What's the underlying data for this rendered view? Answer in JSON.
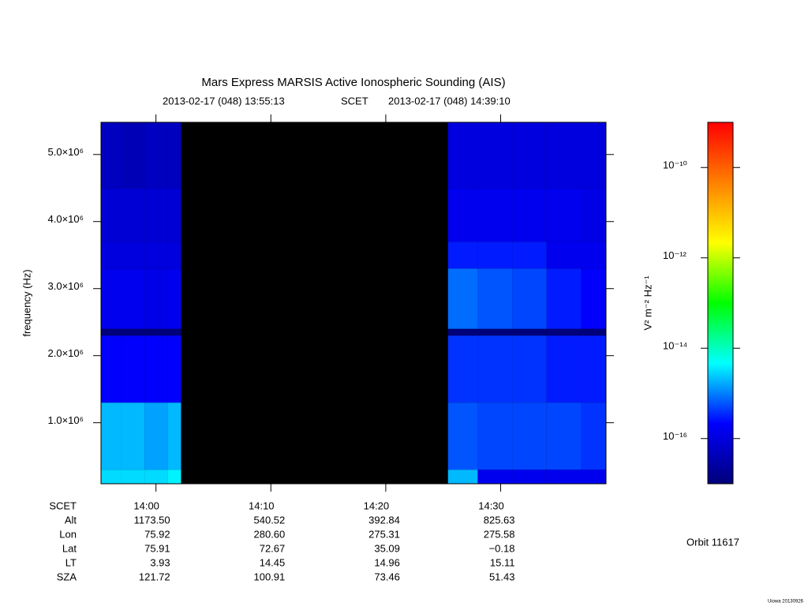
{
  "chart_data": {
    "type": "spectrogram",
    "title": "Mars Express MARSIS Active Ionospheric Sounding (AIS)",
    "start": "2013-02-17 (048) 13:55:13",
    "frame": "SCET",
    "end": "2013-02-17 (048) 14:39:10",
    "ylabel": "frequency (Hz)",
    "xlim": [
      "13:55:13",
      "14:39:10"
    ],
    "xticks": [
      "14:00",
      "14:10",
      "14:20",
      "14:30"
    ],
    "ylim": [
      90000,
      5480000
    ],
    "yticks": [
      {
        "value": 1000000,
        "label": "1.0×10⁶"
      },
      {
        "value": 2000000,
        "label": "2.0×10⁶"
      },
      {
        "value": 3000000,
        "label": "3.0×10⁶"
      },
      {
        "value": 4000000,
        "label": "4.0×10⁶"
      },
      {
        "value": 5000000,
        "label": "5.0×10⁶"
      }
    ],
    "time_bins": [
      "13:55:13",
      "13:57:00",
      "13:59:00",
      "14:01:00",
      "14:02:11",
      "14:25:25",
      "14:28:00",
      "14:31:00",
      "14:34:00",
      "14:37:00",
      "14:39:10"
    ],
    "freq_bins": [
      90000,
      300000,
      1300000,
      2300000,
      2400000,
      3300000,
      3700000,
      4500000,
      5480000
    ],
    "z": [
      [
        3e-15,
        2e-15,
        2e-16,
        1e-17,
        1.5e-16,
        1e-16,
        8e-17,
        5e-17
      ],
      [
        3e-15,
        2e-15,
        2e-16,
        1e-17,
        1.5e-16,
        1e-16,
        8e-17,
        4e-17
      ],
      [
        3e-15,
        1.5e-15,
        2e-16,
        1e-17,
        1.2e-16,
        1e-16,
        8e-17,
        5e-17
      ],
      [
        4e-15,
        2e-15,
        2e-16,
        1e-17,
        1.5e-16,
        1e-16,
        8e-17,
        5e-17
      ],
      [
        null,
        null,
        null,
        null,
        null,
        null,
        null,
        null
      ],
      [
        2e-15,
        6e-16,
        4e-16,
        1e-17,
        8e-16,
        3e-16,
        1.5e-16,
        1e-16
      ],
      [
        1.5e-16,
        5e-16,
        4e-16,
        1e-17,
        6e-16,
        3e-16,
        1.5e-16,
        1e-16
      ],
      [
        1.5e-16,
        5e-16,
        4e-16,
        1e-17,
        5e-16,
        3e-16,
        1.5e-16,
        1e-16
      ],
      [
        1.5e-16,
        5e-16,
        3e-16,
        1e-17,
        3e-16,
        1.5e-16,
        1.5e-16,
        1e-16
      ],
      [
        1.5e-16,
        4e-16,
        3e-16,
        1e-17,
        2e-16,
        1.5e-16,
        1.2e-16,
        1e-16
      ]
    ],
    "zscale": "log",
    "zlim": [
      1e-17,
      1e-09
    ],
    "zticks": [
      {
        "value": 1e-10,
        "label": "10⁻¹⁰"
      },
      {
        "value": 1e-12,
        "label": "10⁻¹²"
      },
      {
        "value": 1e-14,
        "label": "10⁻¹⁴"
      },
      {
        "value": 1e-16,
        "label": "10⁻¹⁶"
      }
    ],
    "zlabel": "V² m⁻² Hz⁻¹",
    "colormap": [
      "#00007a",
      "#0000ff",
      "#00ffff",
      "#00ff00",
      "#ffff00",
      "#ff8000",
      "#ff0000"
    ],
    "ephemeris": {
      "row_labels": [
        "SCET",
        "Alt",
        "Lon",
        "Lat",
        "LT",
        "SZA"
      ],
      "rows": [
        [
          "1173.50",
          "540.52",
          "392.84",
          "825.63"
        ],
        [
          "75.92",
          "280.60",
          "275.31",
          "275.58"
        ],
        [
          "75.91",
          "72.67",
          "35.09",
          "−0.18"
        ],
        [
          "3.93",
          "14.45",
          "14.96",
          "15.11"
        ],
        [
          "121.72",
          "100.91",
          "73.46",
          "51.43"
        ]
      ]
    },
    "orbit": "Orbit 11617",
    "footer": "Uiowa 20130926"
  }
}
